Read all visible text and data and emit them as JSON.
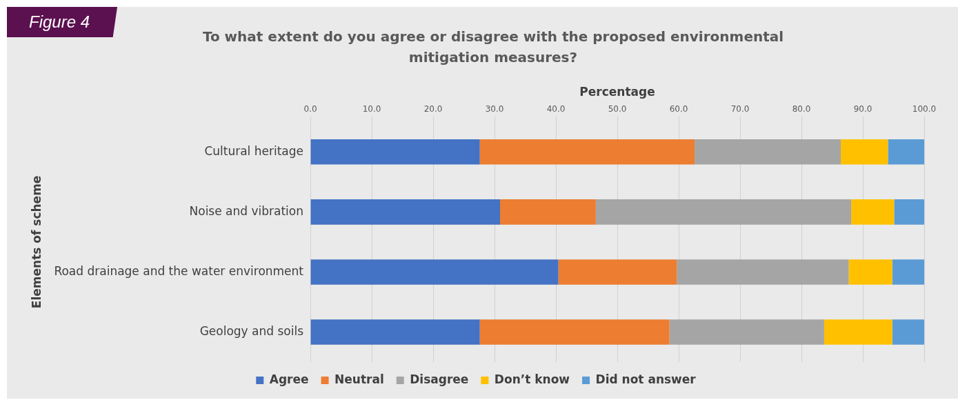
{
  "chart_data": {
    "type": "bar",
    "orientation": "horizontal",
    "stacked": true,
    "title": "To what extent do you agree or disagree with the proposed environmental mitigation measures?",
    "annotations": [
      "Figure 4"
    ],
    "xlabel": "Percentage",
    "ylabel": "Elements of scheme",
    "categories": [
      "Cultural heritage",
      "Noise and vibration",
      "Road drainage and the water environment",
      "Geology and soils"
    ],
    "series": [
      {
        "name": "Agree",
        "color": "#4472c4",
        "values": [
          27.6,
          30.9,
          40.4,
          27.6
        ]
      },
      {
        "name": "Neutral",
        "color": "#ed7d31",
        "values": [
          35.0,
          15.6,
          19.3,
          30.9
        ]
      },
      {
        "name": "Disagree",
        "color": "#a5a5a5",
        "values": [
          23.8,
          41.6,
          28.0,
          25.2
        ]
      },
      {
        "name": "Don’t know",
        "color": "#ffc000",
        "values": [
          7.7,
          7.0,
          7.1,
          11.1
        ]
      },
      {
        "name": "Did not answer",
        "color": "#5b9bd5",
        "values": [
          5.9,
          4.9,
          5.2,
          5.2
        ]
      }
    ],
    "xlim": [
      0,
      100
    ],
    "xticks": [
      {
        "value": 0,
        "label": "0.0"
      },
      {
        "value": 10,
        "label": "10.0"
      },
      {
        "value": 20,
        "label": "20.0"
      },
      {
        "value": 30,
        "label": "30.0"
      },
      {
        "value": 40,
        "label": "40.0"
      },
      {
        "value": 50,
        "label": "50.0"
      },
      {
        "value": 60,
        "label": "60.0"
      },
      {
        "value": 70,
        "label": "70.0"
      },
      {
        "value": 80,
        "label": "80.0"
      },
      {
        "value": 90,
        "label": "90.0"
      },
      {
        "value": 100,
        "label": "100.0"
      }
    ],
    "grid": "x",
    "legend": "bottom"
  }
}
